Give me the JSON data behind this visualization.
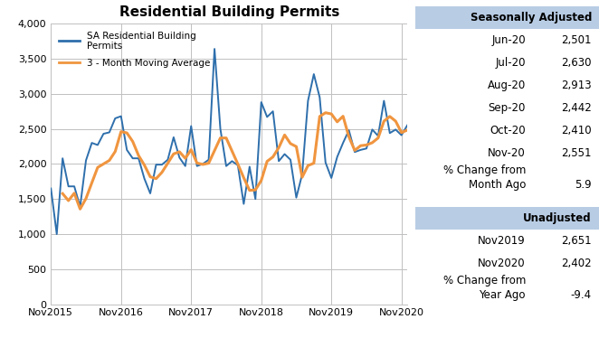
{
  "title": "Residential Building Permits",
  "line1_label": "SA Residential Building\nPermits",
  "line2_label": "3 - Month Moving Average",
  "line1_color": "#2e6fac",
  "line2_color": "#f0953f",
  "ylim": [
    0,
    4000
  ],
  "yticks": [
    0,
    500,
    1000,
    1500,
    2000,
    2500,
    3000,
    3500,
    4000
  ],
  "xtick_labels": [
    "Nov2015",
    "Nov2016",
    "Nov2017",
    "Nov2018",
    "Nov2019",
    "Nov2020"
  ],
  "sa_data": [
    1650,
    1000,
    2080,
    1680,
    1680,
    1390,
    2050,
    2300,
    2270,
    2430,
    2450,
    2650,
    2680,
    2200,
    2080,
    2080,
    1790,
    1580,
    1990,
    1990,
    2060,
    2380,
    2090,
    1970,
    2540,
    1970,
    2000,
    2060,
    3640,
    2500,
    1970,
    2040,
    1980,
    1430,
    1960,
    1500,
    2880,
    2670,
    2750,
    2040,
    2140,
    2060,
    1520,
    1850,
    2900,
    3280,
    2950,
    2020,
    1800,
    2100,
    2300,
    2480,
    2170,
    2200,
    2220,
    2490,
    2400,
    2900,
    2440,
    2490,
    2410,
    2551
  ],
  "ma_data": [
    null,
    null,
    1577,
    1477,
    1583,
    1357,
    1507,
    1730,
    1950,
    2000,
    2050,
    2177,
    2460,
    2443,
    2320,
    2120,
    1983,
    1817,
    1790,
    1880,
    2010,
    2143,
    2173,
    2080,
    2203,
    2013,
    1993,
    2010,
    2190,
    2370,
    2370,
    2183,
    1997,
    1803,
    1623,
    1630,
    1763,
    2037,
    2100,
    2233,
    2413,
    2290,
    2247,
    1810,
    1977,
    2010,
    2677,
    2730,
    2713,
    2600,
    2680,
    2387,
    2193,
    2260,
    2270,
    2303,
    2370,
    2610,
    2677,
    2610,
    2447,
    2483
  ],
  "sa_section_header": "Seasonally Adjusted",
  "sa_rows": [
    [
      "Jun-20",
      "2,501"
    ],
    [
      "Jul-20",
      "2,630"
    ],
    [
      "Aug-20",
      "2,913"
    ],
    [
      "Sep-20",
      "2,442"
    ],
    [
      "Oct-20",
      "2,410"
    ],
    [
      "Nov-20",
      "2,551"
    ]
  ],
  "pct_change_month_label": "% Change from",
  "month_ago_label": "Month Ago",
  "month_ago_value": "5.9",
  "unadj_section_header": "Unadjusted",
  "unadj_rows": [
    [
      "Nov2019",
      "2,651"
    ],
    [
      "Nov2020",
      "2,402"
    ]
  ],
  "pct_change_year_label": "% Change from",
  "year_ago_label": "Year Ago",
  "year_ago_value": "-9.4",
  "header_bg_color": "#b8cce4",
  "chart_bg_color": "#ffffff",
  "grid_color": "#c0c0c0"
}
